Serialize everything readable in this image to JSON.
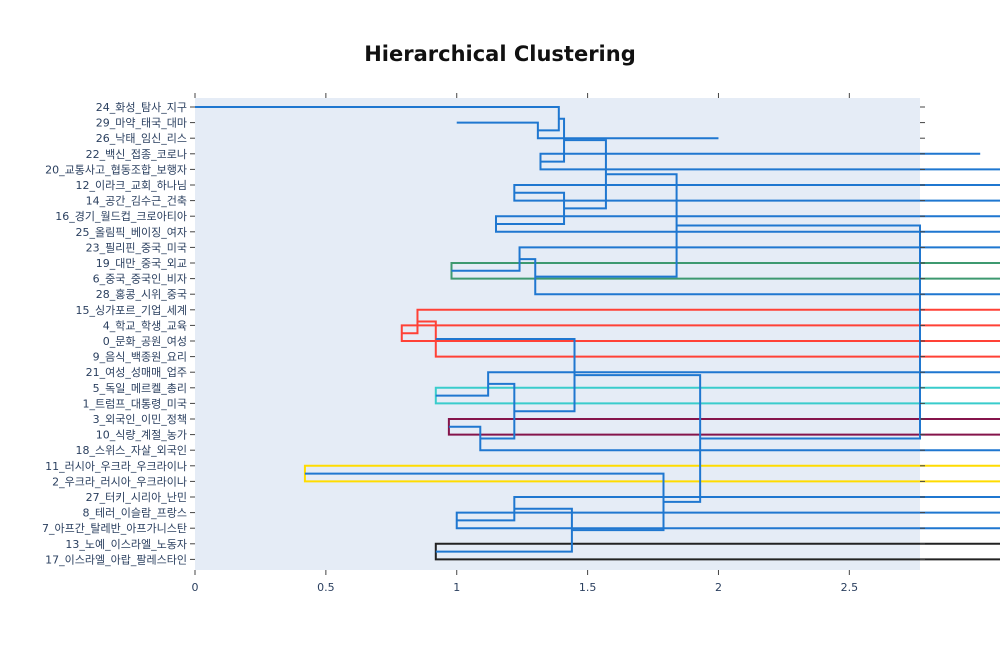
{
  "title": "Hierarchical Clustering",
  "chart_data": {
    "type": "dendrogram",
    "title": "Hierarchical Clustering",
    "orientation": "left",
    "xlim": [
      0,
      2.77
    ],
    "xticks": [
      0,
      0.5,
      1,
      1.5,
      2,
      2.5
    ],
    "xtick_labels": [
      "0",
      "0.5",
      "1",
      "1.5",
      "2",
      "2.5"
    ],
    "colors": {
      "plot_bg": "#e5ecf6",
      "default": "#1f77d0",
      "green": "#3d9970",
      "red": "#ff4136",
      "cyan": "#39cccc",
      "purple": "#85144b",
      "yellow": "#ffdc00",
      "black": "#222222"
    },
    "leaves": [
      "24_화성_탐사_지구",
      "29_마약_태국_대마",
      "26_낙태_임신_리스",
      "22_백신_접종_코로나",
      "20_교통사고_협동조합_보행자",
      "12_이라크_교회_하나님",
      "14_공간_김수근_건축",
      "16_경기_월드컵_크로아티아",
      "25_올림픽_베이징_여자",
      "23_필리핀_중국_미국",
      "19_대만_중국_외교",
      "6_중국_중국인_비자",
      "28_홍콩_시위_중국",
      "15_싱가포르_기업_세계",
      "4_학교_학생_교육",
      "0_문화_공원_여성",
      "9_음식_백종원_요리",
      "21_여성_성매매_업주",
      "5_독일_메르켈_총리",
      "1_트럼프_대통령_미국",
      "3_외국인_이민_정책",
      "10_식량_계절_농가",
      "18_스위스_자살_외국인",
      "11_러시아_우크라_우크라이나",
      "2_우크라_러시아_우크라이나",
      "27_터키_시리아_난민",
      "8_테러_이슬람_프랑스",
      "7_아프간_탈레반_아프가니스탄",
      "13_노예_이스라엘_노동자",
      "17_이스라엘_아랍_팔레스타인"
    ],
    "links": [
      {
        "h": 1.31,
        "a": [
          1,
          1
        ],
        "b": [
          2,
          2
        ],
        "color": "default"
      },
      {
        "h": 1.39,
        "a": [
          0,
          0
        ],
        "b": [
          1.5,
          1.31
        ],
        "color": "default"
      },
      {
        "h": 1.32,
        "a": [
          3,
          3
        ],
        "b": [
          4,
          4
        ],
        "color": "default"
      },
      {
        "h": 1.41,
        "a": [
          0.75,
          1.39
        ],
        "b": [
          3.5,
          1.32
        ],
        "color": "default"
      },
      {
        "h": 1.22,
        "a": [
          5,
          5
        ],
        "b": [
          6,
          6
        ],
        "color": "default"
      },
      {
        "h": 1.15,
        "a": [
          7,
          7
        ],
        "b": [
          8,
          8
        ],
        "color": "default"
      },
      {
        "h": 1.41,
        "a": [
          5.5,
          1.22
        ],
        "b": [
          7.5,
          1.15
        ],
        "color": "default"
      },
      {
        "h": 1.57,
        "a": [
          2.125,
          1.41
        ],
        "b": [
          6.5,
          1.41
        ],
        "color": "default"
      },
      {
        "h": 0.98,
        "a": [
          10,
          10
        ],
        "b": [
          11,
          11
        ],
        "color": "green"
      },
      {
        "h": 1.24,
        "a": [
          9,
          9
        ],
        "b": [
          10.5,
          0.98
        ],
        "color": "default"
      },
      {
        "h": 1.3,
        "a": [
          9.75,
          1.24
        ],
        "b": [
          12,
          12
        ],
        "color": "default"
      },
      {
        "h": 1.84,
        "a": [
          4.3125,
          1.57
        ],
        "b": [
          10.875,
          1.3
        ],
        "color": "default"
      },
      {
        "h": 0.79,
        "a": [
          14,
          14
        ],
        "b": [
          15,
          15
        ],
        "color": "red"
      },
      {
        "h": 0.85,
        "a": [
          13,
          13
        ],
        "b": [
          14.5,
          0.79
        ],
        "color": "red"
      },
      {
        "h": 0.92,
        "a": [
          13.75,
          0.85
        ],
        "b": [
          16,
          16
        ],
        "color": "red"
      },
      {
        "h": 0.92,
        "a": [
          18,
          18
        ],
        "b": [
          19,
          19
        ],
        "color": "cyan"
      },
      {
        "h": 1.12,
        "a": [
          17,
          17
        ],
        "b": [
          18.5,
          0.92
        ],
        "color": "default"
      },
      {
        "h": 0.97,
        "a": [
          20,
          20
        ],
        "b": [
          21,
          21
        ],
        "color": "purple"
      },
      {
        "h": 1.09,
        "a": [
          20.5,
          0.97
        ],
        "b": [
          22,
          22
        ],
        "color": "default"
      },
      {
        "h": 1.22,
        "a": [
          17.75,
          1.12
        ],
        "b": [
          21.25,
          1.09
        ],
        "color": "default"
      },
      {
        "h": 1.45,
        "a": [
          14.875,
          0.92
        ],
        "b": [
          19.5,
          1.22
        ],
        "color": "default"
      },
      {
        "h": 0.42,
        "a": [
          23,
          23
        ],
        "b": [
          24,
          24
        ],
        "color": "yellow"
      },
      {
        "h": 1.0,
        "a": [
          26,
          26
        ],
        "b": [
          27,
          27
        ],
        "color": "default"
      },
      {
        "h": 1.22,
        "a": [
          25,
          25
        ],
        "b": [
          26.5,
          1.0
        ],
        "color": "default"
      },
      {
        "h": 0.92,
        "a": [
          28,
          28
        ],
        "b": [
          29,
          29
        ],
        "color": "black"
      },
      {
        "h": 1.44,
        "a": [
          25.75,
          1.22
        ],
        "b": [
          28.5,
          0.92
        ],
        "color": "default"
      },
      {
        "h": 1.79,
        "a": [
          23.5,
          0.42
        ],
        "b": [
          27.125,
          1.44
        ],
        "color": "default"
      },
      {
        "h": 1.93,
        "a": [
          17.1875,
          1.45
        ],
        "b": [
          25.3125,
          1.79
        ],
        "color": "default"
      },
      {
        "h": 2.77,
        "a": [
          7.59375,
          1.84
        ],
        "b": [
          21.25,
          1.93
        ],
        "color": "default"
      }
    ]
  }
}
